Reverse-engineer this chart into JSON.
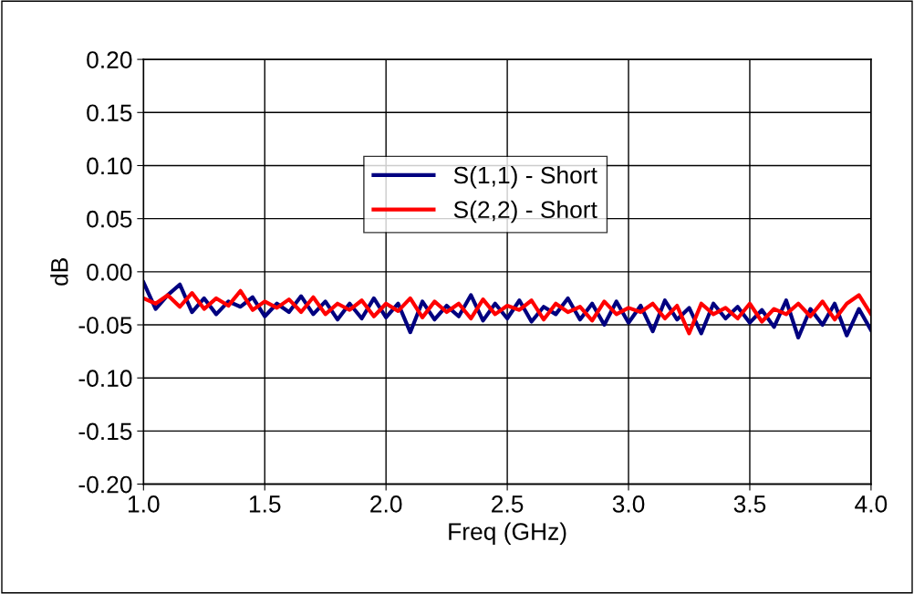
{
  "chart_data": {
    "type": "line",
    "xlabel": "Freq (GHz)",
    "ylabel": "dB",
    "x": [
      1.0,
      1.05,
      1.1,
      1.15,
      1.2,
      1.25,
      1.3,
      1.35,
      1.4,
      1.45,
      1.5,
      1.55,
      1.6,
      1.65,
      1.7,
      1.75,
      1.8,
      1.85,
      1.9,
      1.95,
      2.0,
      2.05,
      2.1,
      2.15,
      2.2,
      2.25,
      2.3,
      2.35,
      2.4,
      2.45,
      2.5,
      2.55,
      2.6,
      2.65,
      2.7,
      2.75,
      2.8,
      2.85,
      2.9,
      2.95,
      3.0,
      3.05,
      3.1,
      3.15,
      3.2,
      3.25,
      3.3,
      3.35,
      3.4,
      3.45,
      3.5,
      3.55,
      3.6,
      3.65,
      3.7,
      3.75,
      3.8,
      3.85,
      3.9,
      3.95,
      4.0
    ],
    "series": [
      {
        "name": "S(1,1) - Short",
        "color": "#000080",
        "values": [
          -0.01,
          -0.035,
          -0.022,
          -0.012,
          -0.038,
          -0.025,
          -0.04,
          -0.028,
          -0.033,
          -0.024,
          -0.042,
          -0.03,
          -0.038,
          -0.023,
          -0.04,
          -0.028,
          -0.045,
          -0.03,
          -0.044,
          -0.025,
          -0.043,
          -0.03,
          -0.057,
          -0.028,
          -0.045,
          -0.032,
          -0.042,
          -0.022,
          -0.046,
          -0.03,
          -0.044,
          -0.027,
          -0.047,
          -0.033,
          -0.04,
          -0.025,
          -0.045,
          -0.03,
          -0.05,
          -0.028,
          -0.048,
          -0.032,
          -0.056,
          -0.027,
          -0.045,
          -0.034,
          -0.058,
          -0.03,
          -0.044,
          -0.033,
          -0.048,
          -0.036,
          -0.052,
          -0.027,
          -0.062,
          -0.035,
          -0.05,
          -0.03,
          -0.06,
          -0.035,
          -0.055
        ]
      },
      {
        "name": "S(2,2) - Short",
        "color": "#ff0000",
        "values": [
          -0.025,
          -0.03,
          -0.022,
          -0.033,
          -0.02,
          -0.035,
          -0.025,
          -0.032,
          -0.018,
          -0.036,
          -0.028,
          -0.034,
          -0.026,
          -0.038,
          -0.024,
          -0.04,
          -0.03,
          -0.036,
          -0.027,
          -0.042,
          -0.03,
          -0.037,
          -0.025,
          -0.043,
          -0.028,
          -0.038,
          -0.03,
          -0.044,
          -0.026,
          -0.04,
          -0.032,
          -0.036,
          -0.027,
          -0.045,
          -0.03,
          -0.038,
          -0.033,
          -0.046,
          -0.028,
          -0.04,
          -0.034,
          -0.038,
          -0.03,
          -0.044,
          -0.032,
          -0.058,
          -0.03,
          -0.04,
          -0.034,
          -0.044,
          -0.03,
          -0.047,
          -0.035,
          -0.04,
          -0.03,
          -0.042,
          -0.028,
          -0.045,
          -0.03,
          -0.022,
          -0.04
        ]
      }
    ],
    "xlim": [
      1.0,
      4.0
    ],
    "xticks": [
      {
        "value": 1.0,
        "label": "1.0"
      },
      {
        "value": 1.5,
        "label": "1.5"
      },
      {
        "value": 2.0,
        "label": "2.0"
      },
      {
        "value": 2.5,
        "label": "2.5"
      },
      {
        "value": 3.0,
        "label": "3.0"
      },
      {
        "value": 3.5,
        "label": "3.5"
      },
      {
        "value": 4.0,
        "label": "4.0"
      }
    ],
    "ylim": [
      -0.2,
      0.2
    ],
    "yticks": [
      {
        "value": -0.2,
        "label": "-0.20"
      },
      {
        "value": -0.15,
        "label": "-0.15"
      },
      {
        "value": -0.1,
        "label": "-0.10"
      },
      {
        "value": -0.05,
        "label": "-0.05"
      },
      {
        "value": 0,
        "label": "0.00"
      },
      {
        "value": 0.05,
        "label": "0.05"
      },
      {
        "value": 0.1,
        "label": "0.10"
      },
      {
        "value": 0.15,
        "label": "0.15"
      },
      {
        "value": 0.2,
        "label": "0.20"
      }
    ],
    "grid": true,
    "legend": "top center",
    "marker": "none",
    "line_style": "solid"
  }
}
